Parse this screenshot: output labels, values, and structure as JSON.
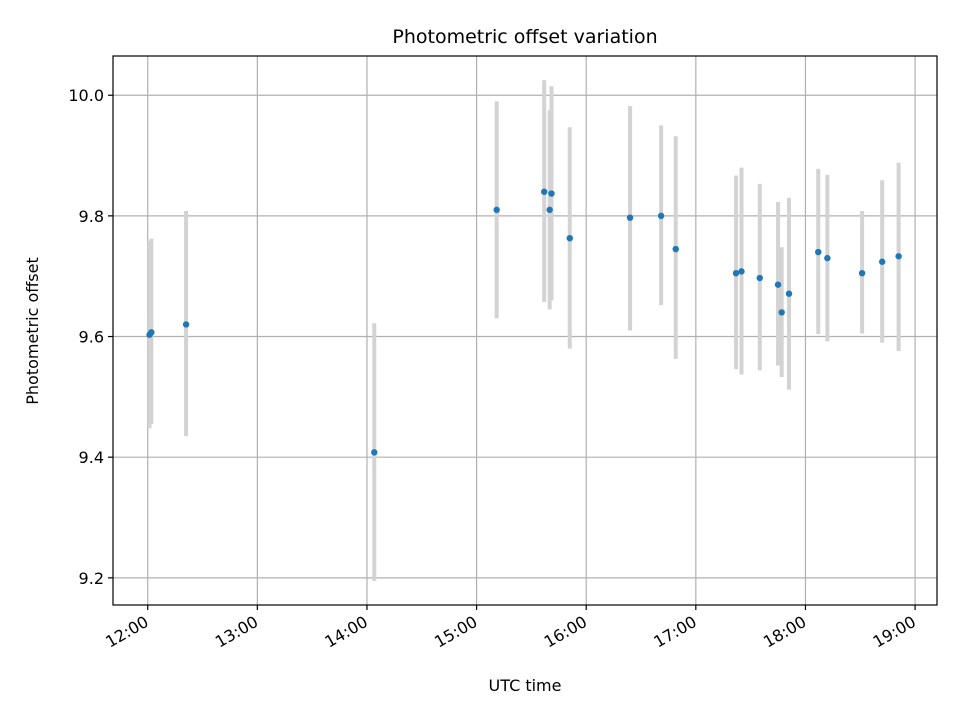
{
  "chart_data": {
    "type": "scatter",
    "title": "Photometric offset variation",
    "xlabel": "UTC time",
    "ylabel": "Photometric offset",
    "x_ticks": [
      "12:00",
      "13:00",
      "14:00",
      "15:00",
      "16:00",
      "17:00",
      "18:00",
      "19:00"
    ],
    "y_ticks": [
      "9.2",
      "9.4",
      "9.6",
      "9.8",
      "10.0"
    ],
    "xlim": [
      "11:41",
      "19:12"
    ],
    "ylim": [
      9.155,
      10.065
    ],
    "grid": true,
    "colors": {
      "point": "#1f77b4",
      "errorbar": "#d3d3d3",
      "grid": "#b0b0b0"
    },
    "points": [
      {
        "x": "12:01",
        "y": 9.603,
        "yerr_low": 9.448,
        "yerr_high": 9.758
      },
      {
        "x": "12:02",
        "y": 9.607,
        "yerr_low": 9.455,
        "yerr_high": 9.762
      },
      {
        "x": "12:21",
        "y": 9.62,
        "yerr_low": 9.435,
        "yerr_high": 9.808
      },
      {
        "x": "14:04",
        "y": 9.408,
        "yerr_low": 9.195,
        "yerr_high": 9.622
      },
      {
        "x": "15:11",
        "y": 9.81,
        "yerr_low": 9.63,
        "yerr_high": 9.99
      },
      {
        "x": "15:37",
        "y": 9.84,
        "yerr_low": 9.657,
        "yerr_high": 10.025
      },
      {
        "x": "15:40",
        "y": 9.81,
        "yerr_low": 9.645,
        "yerr_high": 9.975
      },
      {
        "x": "15:41",
        "y": 9.837,
        "yerr_low": 9.66,
        "yerr_high": 10.015
      },
      {
        "x": "15:51",
        "y": 9.763,
        "yerr_low": 9.58,
        "yerr_high": 9.947
      },
      {
        "x": "16:24",
        "y": 9.797,
        "yerr_low": 9.61,
        "yerr_high": 9.982
      },
      {
        "x": "16:41",
        "y": 9.8,
        "yerr_low": 9.652,
        "yerr_high": 9.95
      },
      {
        "x": "16:49",
        "y": 9.745,
        "yerr_low": 9.563,
        "yerr_high": 9.932
      },
      {
        "x": "17:22",
        "y": 9.705,
        "yerr_low": 9.546,
        "yerr_high": 9.867
      },
      {
        "x": "17:25",
        "y": 9.708,
        "yerr_low": 9.537,
        "yerr_high": 9.88
      },
      {
        "x": "17:35",
        "y": 9.697,
        "yerr_low": 9.544,
        "yerr_high": 9.853
      },
      {
        "x": "17:45",
        "y": 9.686,
        "yerr_low": 9.552,
        "yerr_high": 9.823
      },
      {
        "x": "17:47",
        "y": 9.64,
        "yerr_low": 9.533,
        "yerr_high": 9.748
      },
      {
        "x": "17:51",
        "y": 9.671,
        "yerr_low": 9.512,
        "yerr_high": 9.83
      },
      {
        "x": "18:07",
        "y": 9.74,
        "yerr_low": 9.604,
        "yerr_high": 9.878
      },
      {
        "x": "18:12",
        "y": 9.73,
        "yerr_low": 9.592,
        "yerr_high": 9.868
      },
      {
        "x": "18:31",
        "y": 9.705,
        "yerr_low": 9.605,
        "yerr_high": 9.808
      },
      {
        "x": "18:42",
        "y": 9.724,
        "yerr_low": 9.59,
        "yerr_high": 9.859
      },
      {
        "x": "18:51",
        "y": 9.733,
        "yerr_low": 9.576,
        "yerr_high": 9.888
      }
    ]
  }
}
